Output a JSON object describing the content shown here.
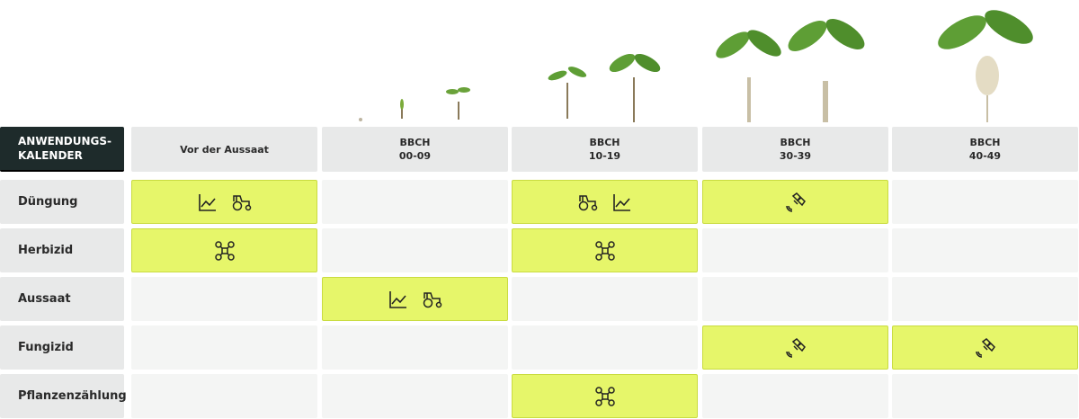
{
  "corner": "ANWENDUNGS-\nKALENDER",
  "columns": [
    "Vor der Aussaat",
    "BBCH\n00-09",
    "BBCH\n10-19",
    "BBCH\n30-39",
    "BBCH\n40-49"
  ],
  "rows": [
    "Düngung",
    "Herbizid",
    "Aussaat",
    "Fungizid",
    "Pflanzenzählung"
  ]
}
